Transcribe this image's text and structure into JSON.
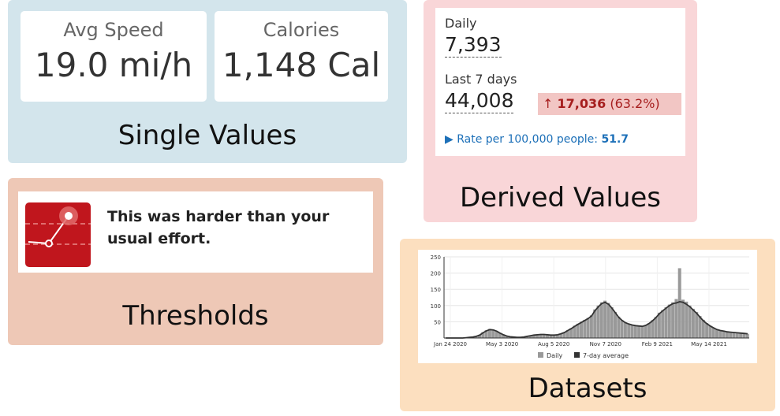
{
  "single_values": {
    "label": "Single Values",
    "cards": [
      {
        "title": "Avg Speed",
        "value": "19.0 mi/h"
      },
      {
        "title": "Calories",
        "value": "1,148 Cal"
      }
    ]
  },
  "thresholds": {
    "label": "Thresholds",
    "message": "This was harder than your usual effort.",
    "icon": "effort-threshold-icon",
    "accent_color": "#c0161d"
  },
  "derived_values": {
    "label": "Derived Values",
    "daily_label": "Daily",
    "daily_value": "7,393",
    "week_label": "Last 7 days",
    "week_value": "44,008",
    "change_arrow": "↑",
    "change_value": "17,036",
    "change_percent": "(63.2%)",
    "rate_marker": "▶",
    "rate_label": "Rate per 100,000 people:",
    "rate_value": "51.7",
    "change_color": "#a61e1e",
    "rate_color": "#1d70b8"
  },
  "datasets": {
    "label": "Datasets",
    "chart_data": {
      "type": "bar",
      "x_ticks": [
        "Jan 24 2020",
        "May 3 2020",
        "Aug 5 2020",
        "Nov 7 2020",
        "Feb 9 2021",
        "May 14 2021"
      ],
      "y_ticks": [
        50,
        100,
        150,
        200,
        250
      ],
      "ylim": [
        0,
        250
      ],
      "grid": true,
      "legend_position": "bottom",
      "series": [
        {
          "name": "Daily",
          "color": "#999999",
          "type": "bar"
        },
        {
          "name": "7-day average",
          "color": "#333333",
          "type": "line"
        }
      ],
      "x_months": [
        0,
        1,
        2,
        3,
        4,
        5,
        6,
        7,
        8,
        9,
        10,
        11,
        12,
        13,
        14,
        15,
        16,
        17,
        18,
        19,
        20,
        21,
        22,
        23,
        24,
        25,
        26,
        27,
        28,
        29,
        30,
        31,
        32,
        33,
        34,
        35,
        36,
        37,
        38,
        39,
        40,
        41,
        42,
        43,
        44,
        45,
        46,
        47,
        48,
        49,
        50,
        51,
        52,
        53,
        54,
        55,
        56,
        57,
        58,
        59,
        60,
        61,
        62,
        63,
        64,
        65,
        66,
        67,
        68,
        69,
        70,
        71,
        72,
        73,
        74,
        75,
        76,
        77,
        78,
        79,
        80,
        81,
        82,
        83,
        84,
        85,
        86,
        87,
        88,
        89
      ],
      "daily": [
        0,
        0,
        0,
        0,
        0,
        0,
        1,
        2,
        3,
        5,
        10,
        18,
        24,
        28,
        26,
        22,
        16,
        10,
        6,
        4,
        3,
        2,
        2,
        3,
        5,
        7,
        9,
        11,
        12,
        11,
        10,
        9,
        9,
        10,
        13,
        18,
        24,
        30,
        38,
        44,
        50,
        56,
        62,
        70,
        88,
        100,
        110,
        115,
        108,
        95,
        80,
        66,
        55,
        48,
        44,
        40,
        38,
        37,
        36,
        40,
        46,
        55,
        65,
        78,
        86,
        95,
        103,
        110,
        120,
        215,
        118,
        112,
        100,
        90,
        80,
        68,
        56,
        46,
        38,
        32,
        27,
        24,
        22,
        20,
        18,
        17,
        16,
        15,
        14,
        13
      ],
      "avg7": [
        0,
        0,
        0,
        0,
        0,
        0,
        1,
        2,
        3,
        5,
        9,
        16,
        22,
        26,
        25,
        21,
        15,
        10,
        6,
        4,
        3,
        2,
        2,
        3,
        5,
        7,
        9,
        10,
        11,
        11,
        10,
        9,
        9,
        10,
        13,
        17,
        23,
        29,
        36,
        42,
        48,
        54,
        60,
        68,
        84,
        96,
        106,
        110,
        104,
        92,
        78,
        64,
        54,
        47,
        43,
        40,
        38,
        37,
        36,
        39,
        45,
        53,
        63,
        75,
        84,
        92,
        100,
        106,
        108,
        112,
        110,
        104,
        96,
        86,
        76,
        64,
        53,
        44,
        37,
        31,
        26,
        23,
        21,
        19,
        18,
        17,
        16,
        15,
        14,
        13
      ]
    }
  }
}
